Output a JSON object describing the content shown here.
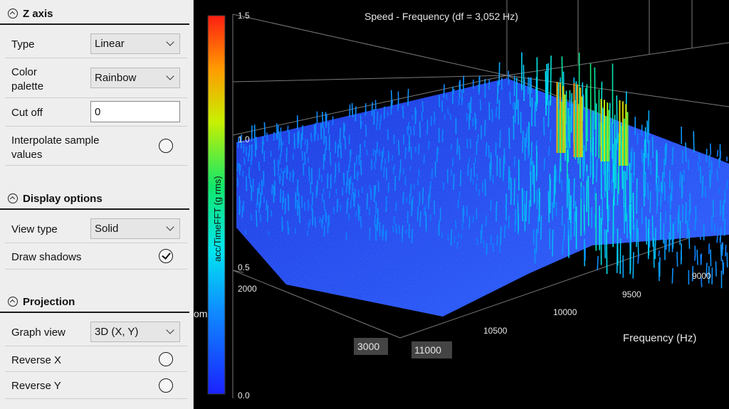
{
  "panel": {
    "z_axis": {
      "title": "Z axis",
      "type_label": "Type",
      "type_value": "Linear",
      "palette_label_1": "Color",
      "palette_label_2": "palette",
      "palette_value": "Rainbow",
      "cutoff_label": "Cut off",
      "cutoff_value": "0",
      "interpolate_label_1": "Interpolate sample",
      "interpolate_label_2": "values",
      "interpolate_checked": false
    },
    "display": {
      "title": "Display options",
      "view_type_label": "View type",
      "view_type_value": "Solid",
      "shadows_label": "Draw shadows",
      "shadows_checked": true
    },
    "projection": {
      "title": "Projection",
      "graph_view_label": "Graph view",
      "graph_view_value": "3D (X, Y)",
      "reverse_x_label": "Reverse X",
      "reverse_x_checked": false,
      "reverse_y_label": "Reverse Y",
      "reverse_y_checked": false
    }
  },
  "chart": {
    "title": "Speed - Frequency (df = 3,052 Hz)",
    "colorbar_label": "acc/TimeFFT (g rms)",
    "z_ticks": [
      "1.5",
      "1.0",
      "0.5",
      "0.0"
    ],
    "speed_ticks": [
      "2000",
      "3000"
    ],
    "freq_ticks": [
      "9000",
      "9500",
      "10000",
      "10500",
      "11000"
    ],
    "freq_axis_label": "Frequency (Hz)",
    "partial_speed_label": "om",
    "colors": {
      "background": "#000000",
      "grid": "#8a8a8a",
      "surface_base": "#1f3fe8"
    }
  },
  "chart_data": {
    "type": "surface3d",
    "title": "Speed - Frequency (df = 3,052 Hz)",
    "zlabel": "acc/TimeFFT (g rms)",
    "xlabel": "Frequency (Hz)",
    "zlim": [
      0,
      1.5
    ],
    "color_palette": "Rainbow",
    "freq_ticks": [
      9000,
      9500,
      10000,
      10500,
      11000
    ],
    "speed_ticks": [
      2000,
      3000
    ],
    "peak_frequencies_hz": [
      9150,
      9400,
      9600,
      9850
    ],
    "peak_values": [
      1.25,
      1.3,
      1.1,
      1.15
    ]
  }
}
